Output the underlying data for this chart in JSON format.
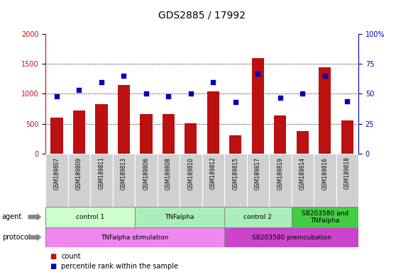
{
  "title": "GDS2885 / 17992",
  "samples": [
    "GSM189807",
    "GSM189809",
    "GSM189811",
    "GSM189813",
    "GSM189806",
    "GSM189808",
    "GSM189810",
    "GSM189812",
    "GSM189815",
    "GSM189817",
    "GSM189819",
    "GSM189814",
    "GSM189816",
    "GSM189818"
  ],
  "counts": [
    600,
    720,
    830,
    1150,
    660,
    660,
    510,
    1040,
    310,
    1600,
    640,
    380,
    1440,
    560
  ],
  "percentiles": [
    48,
    53,
    60,
    65,
    50,
    48,
    50,
    60,
    43,
    67,
    47,
    50,
    65,
    44
  ],
  "ylim_left": [
    0,
    2000
  ],
  "ylim_right": [
    0,
    100
  ],
  "yticks_left": [
    0,
    500,
    1000,
    1500,
    2000
  ],
  "yticks_right": [
    0,
    25,
    50,
    75,
    100
  ],
  "bar_color": "#bb1111",
  "dot_color": "#0000bb",
  "agent_groups": [
    {
      "label": "control 1",
      "start": 0,
      "end": 4,
      "color": "#ccffcc"
    },
    {
      "label": "TNFalpha",
      "start": 4,
      "end": 8,
      "color": "#aaeebb"
    },
    {
      "label": "control 2",
      "start": 8,
      "end": 11,
      "color": "#aaeebb"
    },
    {
      "label": "SB203580 and\nTNFalpha",
      "start": 11,
      "end": 14,
      "color": "#44cc44"
    }
  ],
  "protocol_groups": [
    {
      "label": "TNFalpha stimulation",
      "start": 0,
      "end": 8,
      "color": "#ee88ee"
    },
    {
      "label": "SB203580 preincubation",
      "start": 8,
      "end": 14,
      "color": "#cc44cc"
    }
  ],
  "agent_row_label": "agent",
  "protocol_row_label": "protocol",
  "legend_count_label": "count",
  "legend_pct_label": "percentile rank within the sample",
  "bg_color": "#ffffff",
  "sample_box_color": "#d0d0d0"
}
